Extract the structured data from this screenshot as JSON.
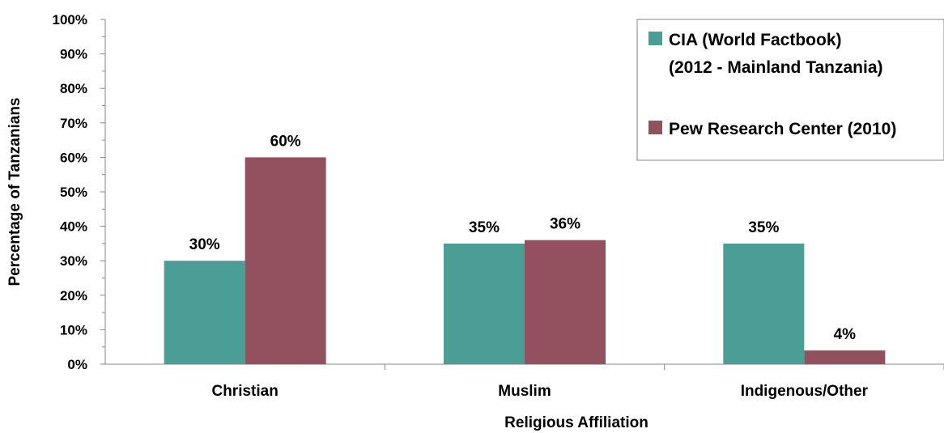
{
  "chart_data": {
    "type": "bar",
    "xlabel": "Religious Affiliation",
    "ylabel": "Percentage of Tanzanians",
    "ylim": [
      0,
      100
    ],
    "y_ticks": [
      "0%",
      "10%",
      "20%",
      "30%",
      "40%",
      "50%",
      "60%",
      "70%",
      "80%",
      "90%",
      "100%"
    ],
    "categories": [
      "Christian",
      "Muslim",
      "Indigenous/Other"
    ],
    "series": [
      {
        "name_lines": [
          "CIA (World Factbook)",
          "(2012 - Mainland Tanzania)"
        ],
        "color": "#4a9e96",
        "values": [
          30,
          35,
          35
        ],
        "labels": [
          "30%",
          "35%",
          "35%"
        ]
      },
      {
        "name_lines": [
          "Pew Research Center (2010)"
        ],
        "color": "#93505e",
        "values": [
          60,
          36,
          4
        ],
        "labels": [
          "60%",
          "36%",
          "4%"
        ]
      }
    ],
    "grid": false,
    "legend_position": "top-right"
  }
}
